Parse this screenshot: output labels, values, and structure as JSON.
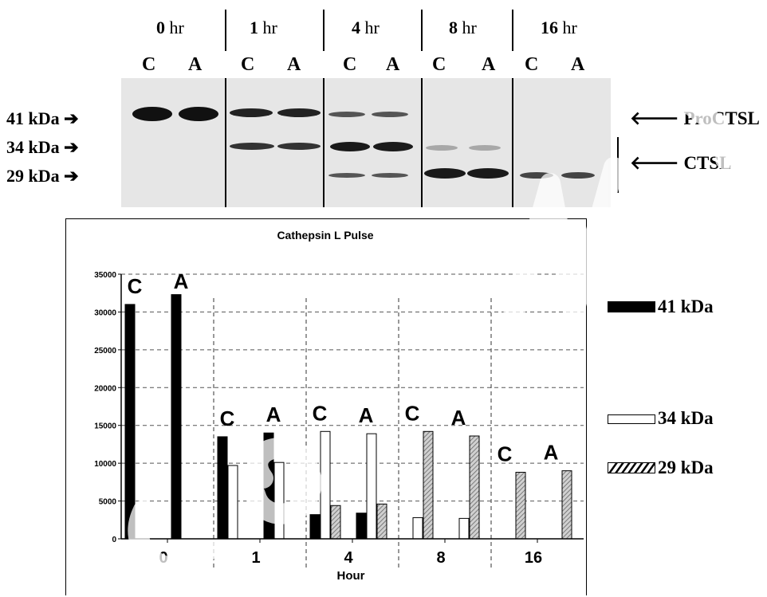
{
  "blot": {
    "time_points": [
      {
        "num": "0",
        "unit": "hr"
      },
      {
        "num": "1",
        "unit": "hr"
      },
      {
        "num": "4",
        "unit": "hr"
      },
      {
        "num": "8",
        "unit": "hr"
      },
      {
        "num": "16",
        "unit": "hr"
      }
    ],
    "lane_labels": [
      "C",
      "A"
    ],
    "markers": [
      "41 kDa",
      "34 kDa",
      "29 kDa"
    ],
    "right_labels": [
      "ProCTSL",
      "CTSL"
    ],
    "arrow_right": "➔",
    "arrow_left": "🡐"
  },
  "chart_data": {
    "type": "bar",
    "title": "Cathepsin L  Pulse",
    "xlabel": "Hour",
    "ylabel": "",
    "ylim": [
      0,
      35000
    ],
    "yticks": [
      "0",
      "5000",
      "10000",
      "15000",
      "20000",
      "25000",
      "30000",
      "35000"
    ],
    "categories": [
      "0",
      "1",
      "4",
      "8",
      "16"
    ],
    "groups": [
      "C",
      "A"
    ],
    "series": [
      {
        "name": "41 kDa",
        "values": {
          "C": [
            31000,
            13500,
            3200,
            0,
            0
          ],
          "A": [
            32300,
            14000,
            3400,
            0,
            0
          ]
        }
      },
      {
        "name": "34 kDa",
        "values": {
          "C": [
            0,
            9700,
            14200,
            2800,
            0
          ],
          "A": [
            0,
            10100,
            13900,
            2700,
            0
          ]
        }
      },
      {
        "name": "29 kDa",
        "values": {
          "C": [
            0,
            0,
            4400,
            14200,
            8800
          ],
          "A": [
            0,
            0,
            4600,
            13600,
            9000
          ]
        }
      }
    ],
    "colors": {
      "41 kDa": "#000000",
      "34 kDa": "#ffffff",
      "29 kDa": "#b5b5b5"
    },
    "grid": true,
    "legend_position": "right"
  }
}
